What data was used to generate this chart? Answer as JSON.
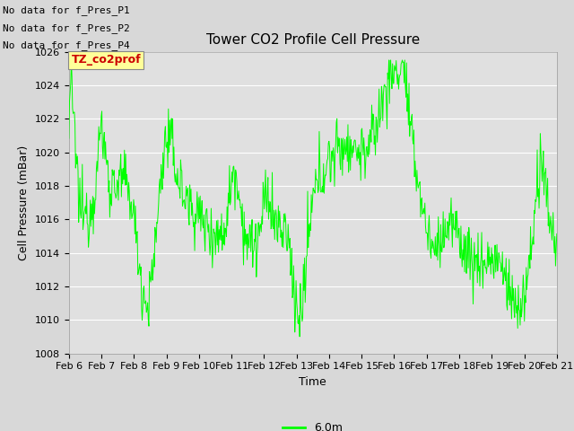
{
  "title": "Tower CO2 Profile Cell Pressure",
  "xlabel": "Time",
  "ylabel": "Cell Pressure (mBar)",
  "ylim": [
    1008,
    1026
  ],
  "xlim": [
    0,
    15
  ],
  "x_tick_labels": [
    "Feb 6",
    "Feb 7",
    "Feb 8",
    "Feb 9",
    "Feb 10",
    "Feb 11",
    "Feb 12",
    "Feb 13",
    "Feb 14",
    "Feb 15",
    "Feb 16",
    "Feb 17",
    "Feb 18",
    "Feb 19",
    "Feb 20",
    "Feb 21"
  ],
  "yticks": [
    1008,
    1010,
    1012,
    1014,
    1016,
    1018,
    1020,
    1022,
    1024,
    1026
  ],
  "line_color": "#00FF00",
  "line_label": "6.0m",
  "fig_bg_color": "#D8D8D8",
  "plot_bg_color": "#E0E0E0",
  "grid_color": "#FFFFFF",
  "no_data_texts": [
    "No data for f_Pres_P1",
    "No data for f_Pres_P2",
    "No data for f_Pres_P4"
  ],
  "legend_label": "TZ_co2prof",
  "legend_bg": "#FFFF99",
  "legend_text_color": "#CC0000",
  "title_fontsize": 11,
  "axis_label_fontsize": 9,
  "tick_fontsize": 8,
  "nodata_fontsize": 8
}
